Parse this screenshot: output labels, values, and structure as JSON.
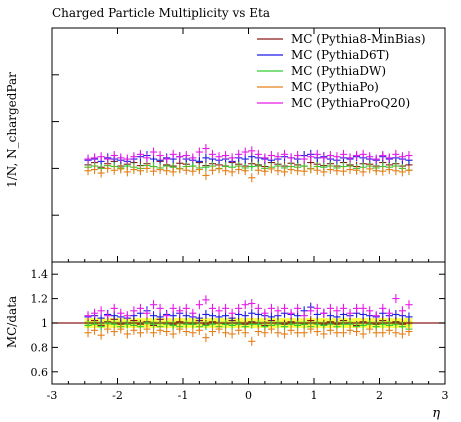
{
  "chart_data": {
    "type": "scatter",
    "title": "Charged Particle Multiplicity vs Eta",
    "ylabel_main": "1/N, N_chargedPar",
    "ylabel_ratio": "MC/data",
    "xlabel": "η",
    "xlim": [
      -3,
      3
    ],
    "main_ylim": [
      0,
      1
    ],
    "ratio_ylim": [
      0.5,
      1.5
    ],
    "x_ticks": [
      "-3",
      "-2",
      "-1",
      "0",
      "1",
      "2",
      "3"
    ],
    "ratio_ticks": [
      "0.6",
      "0.8",
      "1",
      "1.2",
      "1.4"
    ],
    "x": [
      -2.45,
      -2.35,
      -2.25,
      -2.15,
      -2.05,
      -1.95,
      -1.85,
      -1.75,
      -1.65,
      -1.55,
      -1.45,
      -1.35,
      -1.25,
      -1.15,
      -1.05,
      -0.95,
      -0.85,
      -0.75,
      -0.65,
      -0.55,
      -0.45,
      -0.35,
      -0.25,
      -0.15,
      -0.05,
      0.05,
      0.15,
      0.25,
      0.35,
      0.45,
      0.55,
      0.65,
      0.75,
      0.85,
      0.95,
      1.05,
      1.15,
      1.25,
      1.35,
      1.45,
      1.55,
      1.65,
      1.75,
      1.85,
      1.95,
      2.05,
      2.15,
      2.25,
      2.35,
      2.45
    ],
    "series": [
      {
        "name": "MC (Pythia8-MinBias)",
        "color": "#8b1a1a",
        "values": [
          0.415,
          0.425,
          0.405,
          0.42,
          0.43,
          0.41,
          0.418,
          0.425,
          0.412,
          0.42,
          0.408,
          0.43,
          0.415,
          0.41,
          0.422,
          0.418,
          0.41,
          0.425,
          0.412,
          0.42,
          0.415,
          0.41,
          0.425,
          0.418,
          0.41,
          0.42,
          0.415,
          0.408,
          0.425,
          0.418,
          0.41,
          0.422,
          0.415,
          0.41,
          0.425,
          0.418,
          0.412,
          0.42,
          0.41,
          0.425,
          0.415,
          0.408,
          0.42,
          0.418,
          0.41,
          0.425,
          0.415,
          0.42,
          0.41,
          0.415
        ],
        "ratio": [
          1.0,
          1.02,
          0.98,
          1.01,
          1.03,
          0.99,
          1.0,
          1.02,
          0.99,
          1.01,
          0.98,
          1.03,
          1.0,
          0.99,
          1.01,
          1.0,
          0.99,
          1.02,
          0.99,
          1.01,
          1.0,
          0.99,
          1.02,
          1.0,
          0.99,
          1.01,
          1.0,
          0.98,
          1.02,
          1.0,
          0.99,
          1.01,
          1.0,
          0.99,
          1.02,
          1.0,
          0.99,
          1.01,
          0.99,
          1.02,
          1.0,
          0.98,
          1.01,
          1.0,
          0.99,
          1.02,
          1.0,
          1.01,
          0.99,
          1.0
        ]
      },
      {
        "name": "MC (PythiaD6T)",
        "color": "#1a1ae6",
        "values": [
          0.435,
          0.44,
          0.43,
          0.445,
          0.44,
          0.435,
          0.43,
          0.44,
          0.45,
          0.455,
          0.44,
          0.435,
          0.445,
          0.44,
          0.45,
          0.44,
          0.435,
          0.43,
          0.445,
          0.44,
          0.435,
          0.44,
          0.43,
          0.445,
          0.44,
          0.45,
          0.445,
          0.44,
          0.435,
          0.44,
          0.45,
          0.445,
          0.44,
          0.455,
          0.46,
          0.445,
          0.45,
          0.44,
          0.435,
          0.445,
          0.44,
          0.45,
          0.445,
          0.44,
          0.435,
          0.45,
          0.44,
          0.445,
          0.44,
          0.435
        ],
        "ratio": [
          1.05,
          1.06,
          1.04,
          1.07,
          1.06,
          1.05,
          1.04,
          1.06,
          1.08,
          1.1,
          1.06,
          1.05,
          1.07,
          1.06,
          1.08,
          1.06,
          1.05,
          1.04,
          1.07,
          1.06,
          1.05,
          1.06,
          1.04,
          1.07,
          1.06,
          1.08,
          1.07,
          1.06,
          1.05,
          1.06,
          1.08,
          1.07,
          1.06,
          1.1,
          1.13,
          1.07,
          1.08,
          1.06,
          1.05,
          1.07,
          1.06,
          1.08,
          1.07,
          1.06,
          1.05,
          1.08,
          1.06,
          1.07,
          1.06,
          1.05
        ]
      },
      {
        "name": "MC (PythiaDW)",
        "color": "#33cc33",
        "values": [
          0.405,
          0.41,
          0.4,
          0.412,
          0.408,
          0.402,
          0.41,
          0.405,
          0.4,
          0.412,
          0.408,
          0.402,
          0.41,
          0.405,
          0.4,
          0.408,
          0.41,
          0.402,
          0.405,
          0.41,
          0.4,
          0.408,
          0.405,
          0.41,
          0.402,
          0.408,
          0.41,
          0.4,
          0.405,
          0.41,
          0.402,
          0.408,
          0.405,
          0.41,
          0.4,
          0.408,
          0.405,
          0.41,
          0.402,
          0.408,
          0.41,
          0.4,
          0.405,
          0.41,
          0.402,
          0.408,
          0.405,
          0.41,
          0.4,
          0.392
        ],
        "ratio": [
          0.98,
          0.99,
          0.97,
          1.0,
          0.99,
          0.97,
          0.99,
          0.98,
          0.97,
          1.0,
          0.99,
          0.97,
          0.99,
          0.98,
          0.97,
          0.99,
          0.99,
          0.97,
          0.98,
          0.99,
          0.97,
          0.99,
          0.98,
          0.99,
          0.97,
          0.99,
          0.99,
          0.97,
          0.98,
          0.99,
          0.97,
          0.99,
          0.98,
          0.99,
          0.97,
          0.99,
          0.98,
          0.99,
          0.97,
          0.99,
          0.99,
          0.97,
          0.98,
          0.99,
          0.97,
          0.99,
          0.98,
          0.99,
          0.97,
          0.95
        ]
      },
      {
        "name": "MC (PythiaPo)",
        "color": "#e6801a",
        "values": [
          0.39,
          0.395,
          0.38,
          0.4,
          0.392,
          0.398,
          0.385,
          0.395,
          0.39,
          0.4,
          0.388,
          0.395,
          0.39,
          0.385,
          0.398,
          0.392,
          0.388,
          0.395,
          0.37,
          0.392,
          0.398,
          0.39,
          0.385,
          0.395,
          0.39,
          0.36,
          0.392,
          0.388,
          0.398,
          0.39,
          0.385,
          0.395,
          0.39,
          0.388,
          0.398,
          0.392,
          0.385,
          0.395,
          0.39,
          0.388,
          0.395,
          0.392,
          0.385,
          0.398,
          0.39,
          0.388,
          0.395,
          0.39,
          0.385,
          0.392
        ],
        "ratio": [
          0.92,
          0.94,
          0.9,
          0.95,
          0.93,
          0.95,
          0.91,
          0.94,
          0.92,
          0.95,
          0.92,
          0.94,
          0.93,
          0.91,
          0.95,
          0.93,
          0.92,
          0.94,
          0.88,
          0.93,
          0.95,
          0.92,
          0.91,
          0.94,
          0.92,
          0.85,
          0.93,
          0.92,
          0.95,
          0.92,
          0.91,
          0.94,
          0.92,
          0.92,
          0.95,
          0.93,
          0.91,
          0.94,
          0.92,
          0.92,
          0.94,
          0.93,
          0.91,
          0.95,
          0.92,
          0.92,
          0.94,
          0.92,
          0.91,
          0.93
        ]
      },
      {
        "name": "MC (PythiaProQ20)",
        "color": "#e61ae6",
        "values": [
          0.44,
          0.445,
          0.45,
          0.44,
          0.455,
          0.445,
          0.44,
          0.45,
          0.46,
          0.445,
          0.47,
          0.455,
          0.44,
          0.46,
          0.45,
          0.455,
          0.445,
          0.47,
          0.485,
          0.46,
          0.45,
          0.455,
          0.445,
          0.46,
          0.47,
          0.475,
          0.46,
          0.445,
          0.455,
          0.45,
          0.46,
          0.445,
          0.455,
          0.44,
          0.45,
          0.46,
          0.445,
          0.455,
          0.45,
          0.46,
          0.445,
          0.455,
          0.46,
          0.45,
          0.44,
          0.455,
          0.445,
          0.46,
          0.45,
          0.455
        ],
        "ratio": [
          1.06,
          1.08,
          1.1,
          1.06,
          1.12,
          1.08,
          1.06,
          1.1,
          1.12,
          1.08,
          1.15,
          1.12,
          1.06,
          1.12,
          1.1,
          1.12,
          1.08,
          1.15,
          1.19,
          1.12,
          1.1,
          1.12,
          1.08,
          1.12,
          1.15,
          1.16,
          1.12,
          1.08,
          1.12,
          1.1,
          1.12,
          1.08,
          1.12,
          1.06,
          1.1,
          1.12,
          1.08,
          1.12,
          1.1,
          1.12,
          1.08,
          1.12,
          1.12,
          1.1,
          1.06,
          1.12,
          1.08,
          1.2,
          1.1,
          1.15
        ]
      }
    ]
  }
}
